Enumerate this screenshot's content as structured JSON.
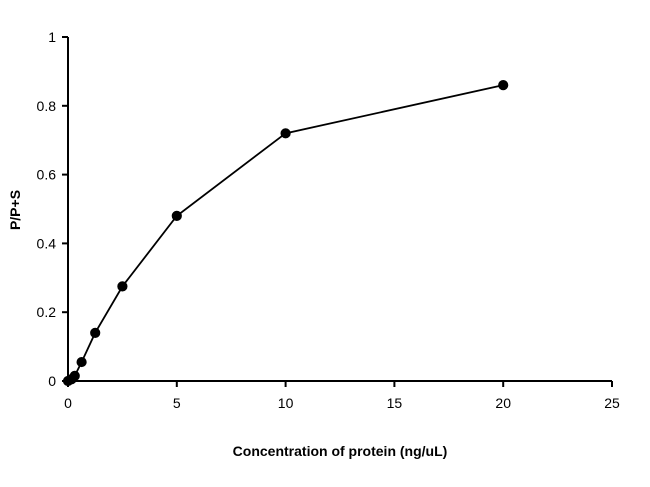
{
  "chart_data": {
    "type": "line",
    "title": "",
    "xlabel": "Concentration of protein (ng/uL)",
    "ylabel": "P/P+S",
    "xlim": [
      0,
      25
    ],
    "ylim": [
      0,
      1
    ],
    "xticks": [
      0,
      5,
      10,
      15,
      20,
      25
    ],
    "yticks": [
      0,
      0.2,
      0.4,
      0.6,
      0.8,
      1
    ],
    "xtick_labels": [
      "0",
      "5",
      "10",
      "15",
      "20",
      "25"
    ],
    "ytick_labels": [
      "0",
      "0.2",
      "0.4",
      "0.6",
      "0.8",
      "1"
    ],
    "grid": false,
    "legend": "none",
    "series": [
      {
        "x": [
          0,
          0.16,
          0.31,
          0.625,
          1.25,
          2.5,
          5,
          10,
          20
        ],
        "y": [
          0,
          0.005,
          0.015,
          0.055,
          0.14,
          0.275,
          0.48,
          0.72,
          0.86
        ],
        "color": "#000000",
        "marker": "circle"
      }
    ]
  }
}
